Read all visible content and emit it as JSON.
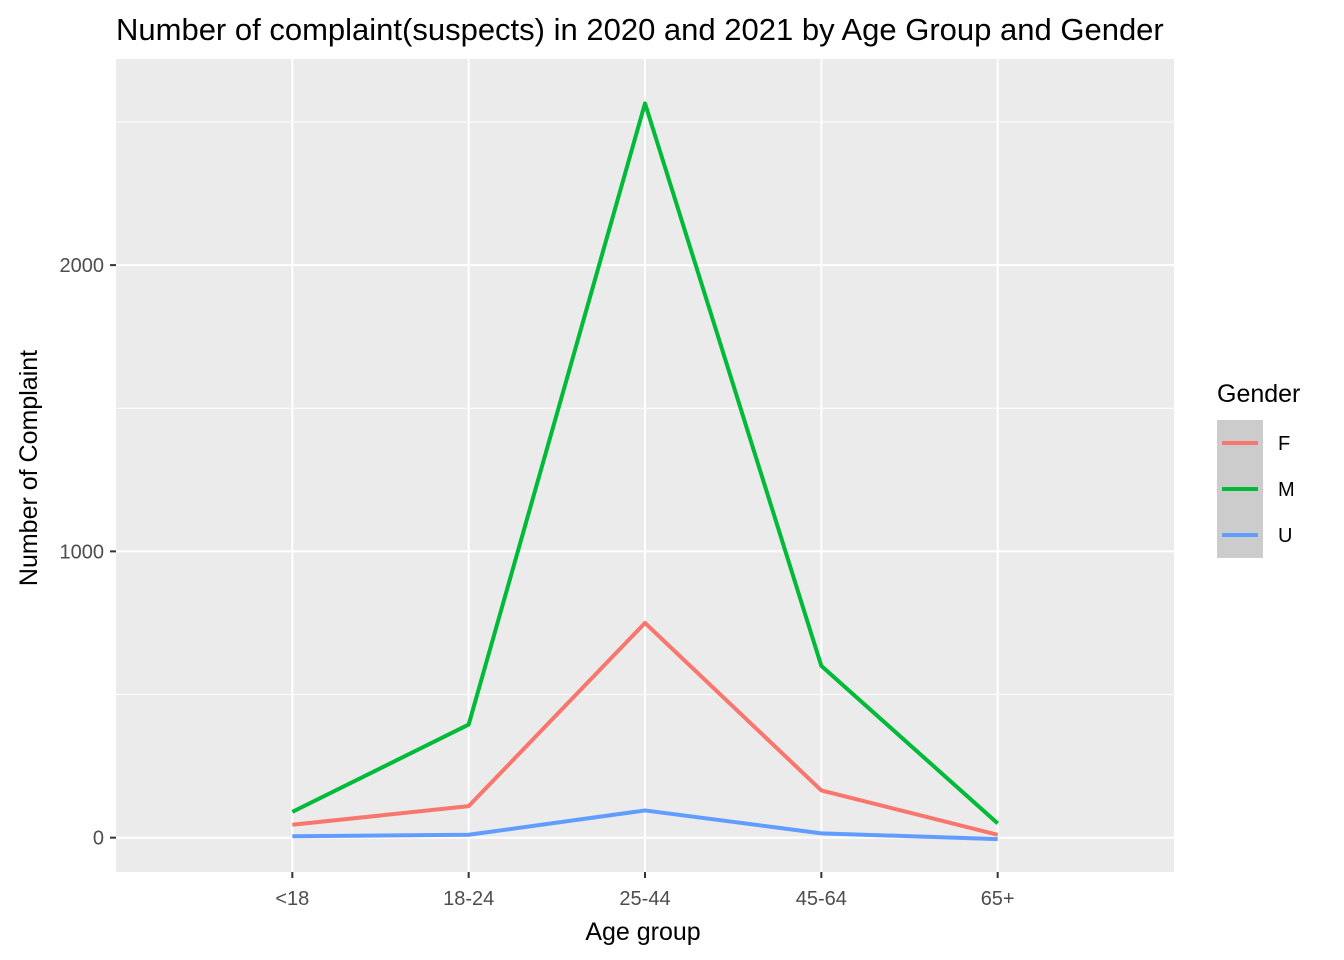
{
  "chart_data": {
    "type": "line",
    "title": "Number of complaint(suspects) in 2020 and 2021 by Age Group and Gender",
    "xlabel": "Age group",
    "ylabel": "Number of Complaint",
    "categories": [
      "<18",
      "18-24",
      "25-44",
      "45-64",
      "65+"
    ],
    "ylim": [
      -120,
      2720
    ],
    "yticks": [
      0,
      1000,
      2000
    ],
    "grid": true,
    "legend": {
      "title": "Gender",
      "position": "right"
    },
    "series": [
      {
        "name": "F",
        "color": "#F8766D",
        "values": [
          45,
          110,
          750,
          165,
          10
        ]
      },
      {
        "name": "M",
        "color": "#00BA38",
        "values": [
          90,
          395,
          2565,
          600,
          50
        ]
      },
      {
        "name": "U",
        "color": "#619CFF",
        "values": [
          5,
          10,
          95,
          15,
          -5
        ]
      }
    ]
  }
}
